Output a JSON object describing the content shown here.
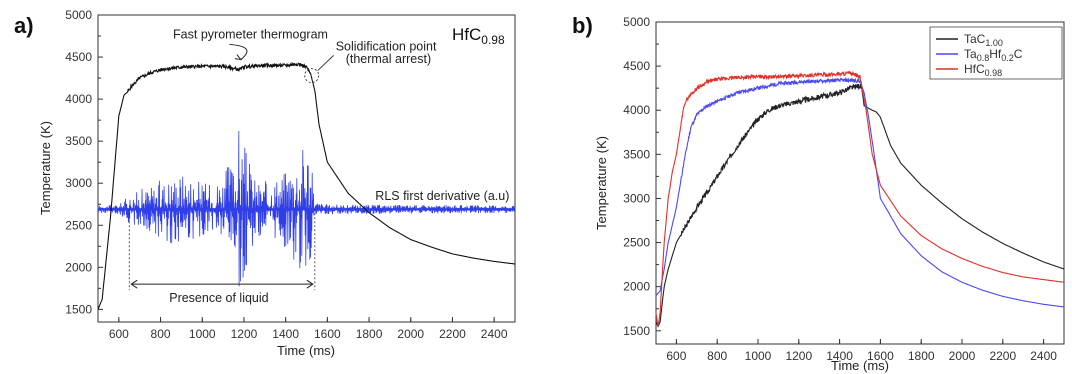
{
  "chart_data": [
    {
      "type": "line",
      "panel_label": "a)",
      "title": "HfC0.98",
      "title_parts": {
        "main": "HfC",
        "sub": "0.98"
      },
      "xlabel": "Time (ms)",
      "ylabel": "Temperature (K)",
      "xlim": [
        500,
        2500
      ],
      "ylim": [
        1350,
        5000
      ],
      "xticks": [
        600,
        800,
        1000,
        1200,
        1400,
        1600,
        1800,
        2000,
        2200,
        2400
      ],
      "yticks": [
        1500,
        2000,
        2500,
        3000,
        3500,
        4000,
        4500,
        5000
      ],
      "grid": false,
      "series": [
        {
          "name": "Fast pyrometer thermogram",
          "color": "#111111",
          "x": [
            500,
            520,
            560,
            600,
            625,
            640,
            660,
            700,
            760,
            820,
            900,
            1000,
            1100,
            1180,
            1200,
            1300,
            1400,
            1460,
            1500,
            1520,
            1540,
            1560,
            1600,
            1700,
            1800,
            1900,
            2000,
            2100,
            2200,
            2300,
            2400,
            2500
          ],
          "y": [
            1500,
            1620,
            2600,
            3800,
            4050,
            4080,
            4150,
            4250,
            4320,
            4360,
            4380,
            4390,
            4390,
            4350,
            4385,
            4400,
            4400,
            4420,
            4380,
            4300,
            4100,
            3700,
            3250,
            2880,
            2650,
            2470,
            2330,
            2240,
            2160,
            2110,
            2070,
            2040
          ]
        },
        {
          "name": "RLS first derivative (a.u)",
          "color": "#2f3ee6",
          "baseline": 2690,
          "x": [
            500,
            600,
            640,
            700,
            760,
            800,
            850,
            900,
            950,
            1000,
            1050,
            1100,
            1150,
            1180,
            1200,
            1230,
            1260,
            1300,
            1350,
            1400,
            1450,
            1480,
            1510,
            1540,
            1600,
            2500
          ],
          "amplitude_up": [
            30,
            40,
            120,
            200,
            250,
            300,
            350,
            400,
            350,
            280,
            250,
            400,
            500,
            950,
            700,
            450,
            300,
            280,
            350,
            420,
            600,
            700,
            800,
            80,
            40,
            30
          ],
          "amplitude_down": [
            30,
            40,
            120,
            200,
            250,
            300,
            350,
            400,
            350,
            280,
            250,
            400,
            600,
            950,
            700,
            450,
            300,
            280,
            350,
            420,
            600,
            700,
            800,
            80,
            40,
            30
          ]
        }
      ],
      "annotations": [
        {
          "text": "Fast pyrometer thermogram",
          "x": 860,
          "y": 4720
        },
        {
          "text": "Solidification point",
          "x": 1640,
          "y": 4580
        },
        {
          "text": "(thermal arrest)",
          "x": 1640,
          "y": 4430
        },
        {
          "text": "RLS first derivative (a.u)",
          "x": 1830,
          "y": 2800
        },
        {
          "text": "Presence of liquid",
          "x": 1080,
          "y": 1590
        }
      ],
      "liquid_range": [
        650,
        1540
      ]
    },
    {
      "type": "line",
      "panel_label": "b)",
      "title": "",
      "xlabel": "Time (ms)",
      "ylabel": "Temperature (K)",
      "xlim": [
        500,
        2500
      ],
      "ylim": [
        1350,
        5000
      ],
      "xticks": [
        600,
        800,
        1000,
        1200,
        1400,
        1600,
        1800,
        2000,
        2200,
        2400
      ],
      "yticks": [
        1500,
        2000,
        2500,
        3000,
        3500,
        4000,
        4500,
        5000
      ],
      "grid": false,
      "legend": "top-right",
      "series": [
        {
          "name": "TaC1.00",
          "name_parts": [
            {
              "t": "TaC"
            },
            {
              "t": "1.00",
              "sub": true
            }
          ],
          "color": "#222222",
          "x": [
            500,
            510,
            520,
            540,
            560,
            600,
            650,
            700,
            760,
            800,
            900,
            1000,
            1050,
            1100,
            1200,
            1300,
            1400,
            1450,
            1500,
            1510,
            1520,
            1560,
            1580,
            1600,
            1650,
            1700,
            1800,
            1900,
            2000,
            2100,
            2200,
            2300,
            2400,
            2500
          ],
          "y": [
            1600,
            1550,
            1600,
            2000,
            2200,
            2500,
            2700,
            2900,
            3100,
            3250,
            3600,
            3900,
            4000,
            4050,
            4100,
            4150,
            4200,
            4250,
            4280,
            4230,
            4050,
            4000,
            3980,
            3920,
            3600,
            3400,
            3150,
            2950,
            2770,
            2620,
            2490,
            2380,
            2280,
            2200
          ]
        },
        {
          "name": "Ta0.8Hf0.2C",
          "name_parts": [
            {
              "t": "Ta"
            },
            {
              "t": "0.8",
              "sub": true
            },
            {
              "t": "Hf"
            },
            {
              "t": "0.2",
              "sub": true
            },
            {
              "t": "C"
            }
          ],
          "color": "#4a4af0",
          "x": [
            500,
            520,
            540,
            560,
            600,
            640,
            670,
            700,
            750,
            800,
            900,
            1000,
            1100,
            1200,
            1300,
            1400,
            1450,
            1500,
            1520,
            1540,
            1560,
            1600,
            1700,
            1800,
            1900,
            2000,
            2100,
            2200,
            2300,
            2400,
            2500
          ],
          "y": [
            1900,
            1950,
            2200,
            2500,
            2900,
            3450,
            3800,
            3950,
            4050,
            4100,
            4200,
            4250,
            4300,
            4320,
            4330,
            4340,
            4340,
            4330,
            4200,
            3950,
            3650,
            3000,
            2600,
            2350,
            2170,
            2050,
            1960,
            1890,
            1840,
            1800,
            1770
          ]
        },
        {
          "name": "HfC0.98",
          "name_parts": [
            {
              "t": "HfC"
            },
            {
              "t": "0.98",
              "sub": true
            }
          ],
          "color": "#e0302a",
          "x": [
            500,
            510,
            520,
            540,
            560,
            580,
            600,
            620,
            640,
            660,
            700,
            750,
            800,
            900,
            1000,
            1100,
            1200,
            1300,
            1400,
            1450,
            1500,
            1510,
            1530,
            1560,
            1600,
            1700,
            1800,
            1900,
            2000,
            2100,
            2200,
            2300,
            2400,
            2500
          ],
          "y": [
            1700,
            1550,
            1700,
            2500,
            3000,
            3300,
            3500,
            3800,
            4080,
            4150,
            4250,
            4320,
            4350,
            4370,
            4380,
            4380,
            4390,
            4400,
            4410,
            4420,
            4380,
            4250,
            4000,
            3500,
            3150,
            2800,
            2580,
            2430,
            2320,
            2230,
            2160,
            2110,
            2080,
            2050
          ]
        }
      ]
    }
  ]
}
